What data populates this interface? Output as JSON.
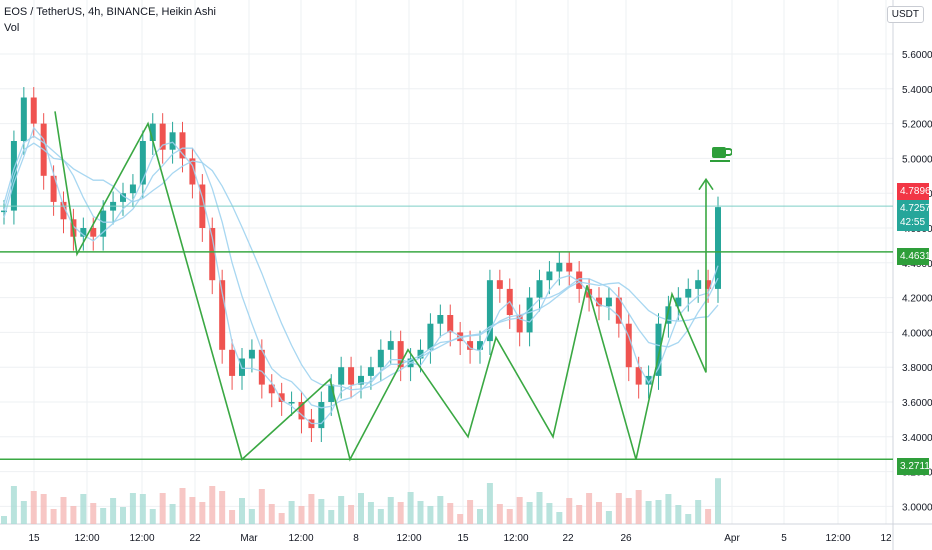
{
  "header": {
    "title": "EOS / TetherUS, 4h, BINANCE, Heikin Ashi",
    "indicator": "Vol",
    "currency": "USDT"
  },
  "chart_data": {
    "type": "candlestick",
    "yticks": [
      "5.6000",
      "5.4000",
      "5.2000",
      "5.0000",
      "4.8000",
      "4.6000",
      "4.4000",
      "4.2000",
      "4.0000",
      "3.8000",
      "3.6000",
      "3.4000",
      "3.2000",
      "3.0000"
    ],
    "ylim": [
      2.99,
      5.71
    ],
    "xticks": [
      "15",
      "12:00",
      "19",
      "12:00",
      "22",
      "12:00",
      "Mar",
      "12:00",
      "8",
      "12:00",
      "15",
      "12:00",
      "22",
      "12:00",
      "26",
      "Apr",
      "5",
      "12:00",
      "12"
    ],
    "price_labels": [
      {
        "text": "4.7896",
        "color": "#f23645"
      },
      {
        "text": "4.7257",
        "color": "#26a69a"
      },
      {
        "text": "42:55",
        "color": "#26a69a"
      },
      {
        "text": "4.4631",
        "color": "#2e9e3a"
      },
      {
        "text": "3.2711",
        "color": "#2e9e3a"
      }
    ],
    "levels": [
      4.4631,
      3.2711
    ],
    "colors": {
      "up": "#26a69a",
      "down": "#ef5350",
      "ma": "#9fd3ef",
      "drawing": "#3aa843",
      "grid": "#eef0f3"
    },
    "closes": [
      4.7,
      5.1,
      5.35,
      5.2,
      4.9,
      4.75,
      4.65,
      4.55,
      4.6,
      4.55,
      4.7,
      4.75,
      4.8,
      4.85,
      5.1,
      5.2,
      5.05,
      5.15,
      5.0,
      4.85,
      4.6,
      4.3,
      3.9,
      3.75,
      3.85,
      3.9,
      3.7,
      3.65,
      3.6,
      3.6,
      3.5,
      3.45,
      3.6,
      3.7,
      3.8,
      3.7,
      3.75,
      3.8,
      3.9,
      3.95,
      3.8,
      3.85,
      3.9,
      4.05,
      4.1,
      4.0,
      3.95,
      3.9,
      3.95,
      4.3,
      4.25,
      4.1,
      4.0,
      4.2,
      4.3,
      4.35,
      4.4,
      4.35,
      4.25,
      4.2,
      4.15,
      4.2,
      4.05,
      3.8,
      3.7,
      3.75,
      4.05,
      4.15,
      4.2,
      4.25,
      4.3,
      4.25,
      4.72
    ]
  }
}
